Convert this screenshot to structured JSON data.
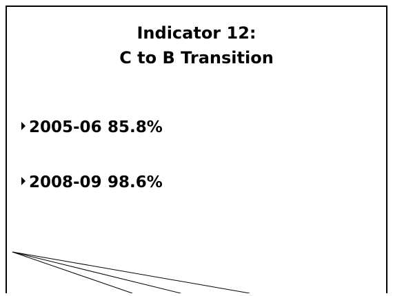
{
  "title": [
    "Indicator 12:",
    "C to B Transition"
  ],
  "bullets": [
    {
      "year": "2005-06",
      "value": "85.8%"
    },
    {
      "year": "2008-09",
      "value": "98.6%"
    }
  ]
}
